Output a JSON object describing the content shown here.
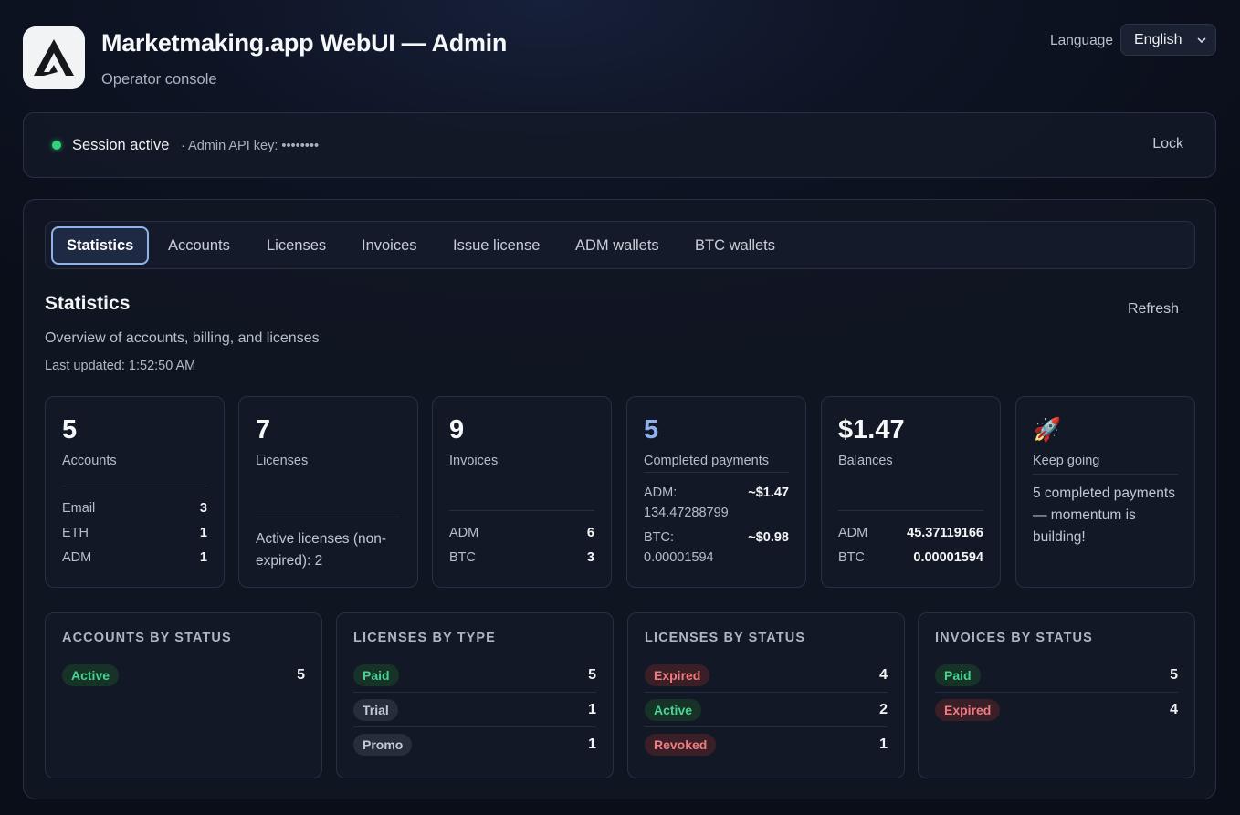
{
  "header": {
    "title": "Marketmaking.app WebUI — Admin",
    "subtitle": "Operator console",
    "language_label": "Language",
    "language_value": "English"
  },
  "session": {
    "status": "Session active",
    "api_key_text": "· Admin API key: ••••••••",
    "lock_label": "Lock",
    "status_color": "#34d17a"
  },
  "tabs": [
    {
      "label": "Statistics",
      "active": true
    },
    {
      "label": "Accounts"
    },
    {
      "label": "Licenses"
    },
    {
      "label": "Invoices"
    },
    {
      "label": "Issue license"
    },
    {
      "label": "ADM wallets"
    },
    {
      "label": "BTC wallets"
    }
  ],
  "section": {
    "title": "Statistics",
    "description": "Overview of accounts, billing, and licenses",
    "last_updated": "Last updated: 1:52:50 AM",
    "refresh_label": "Refresh"
  },
  "stats": {
    "accounts": {
      "value": "5",
      "label": "Accounts",
      "rows": [
        {
          "k": "Email",
          "v": "3"
        },
        {
          "k": "ETH",
          "v": "1"
        },
        {
          "k": "ADM",
          "v": "1"
        }
      ]
    },
    "licenses": {
      "value": "7",
      "label": "Licenses",
      "note": "Active licenses (non-expired): 2"
    },
    "invoices": {
      "value": "9",
      "label": "Invoices",
      "rows": [
        {
          "k": "ADM",
          "v": "6"
        },
        {
          "k": "BTC",
          "v": "3"
        }
      ]
    },
    "payments": {
      "value": "5",
      "label": "Completed payments",
      "rows": [
        {
          "k": "ADM:",
          "sub": "134.47288799",
          "amt": "~$1.47"
        },
        {
          "k": "BTC:",
          "sub": "0.00001594",
          "amt": "~$0.98"
        }
      ]
    },
    "balances": {
      "value": "$1.47",
      "label": "Balances",
      "rows": [
        {
          "k": "ADM",
          "v": "45.37119166"
        },
        {
          "k": "BTC",
          "v": "0.00001594"
        }
      ]
    },
    "motivation": {
      "icon": "🚀",
      "label": "Keep going",
      "note": "5 completed payments — momentum is building!"
    }
  },
  "status_cards": {
    "accounts_by_status": {
      "title": "ACCOUNTS BY STATUS",
      "rows": [
        {
          "label": "Active",
          "count": "5"
        }
      ]
    },
    "licenses_by_type": {
      "title": "LICENSES BY TYPE",
      "rows": [
        {
          "label": "Paid",
          "count": "5"
        },
        {
          "label": "Trial",
          "count": "1"
        },
        {
          "label": "Promo",
          "count": "1"
        }
      ]
    },
    "licenses_by_status": {
      "title": "LICENSES BY STATUS",
      "rows": [
        {
          "label": "Expired",
          "count": "4"
        },
        {
          "label": "Active",
          "count": "2"
        },
        {
          "label": "Revoked",
          "count": "1"
        }
      ]
    },
    "invoices_by_status": {
      "title": "INVOICES BY STATUS",
      "rows": [
        {
          "label": "Paid",
          "count": "5"
        },
        {
          "label": "Expired",
          "count": "4"
        }
      ]
    }
  },
  "colors": {
    "success": "#46d493",
    "danger": "#f07b80",
    "neutral": "#c4cad5",
    "accent": "#8fb2ee"
  }
}
